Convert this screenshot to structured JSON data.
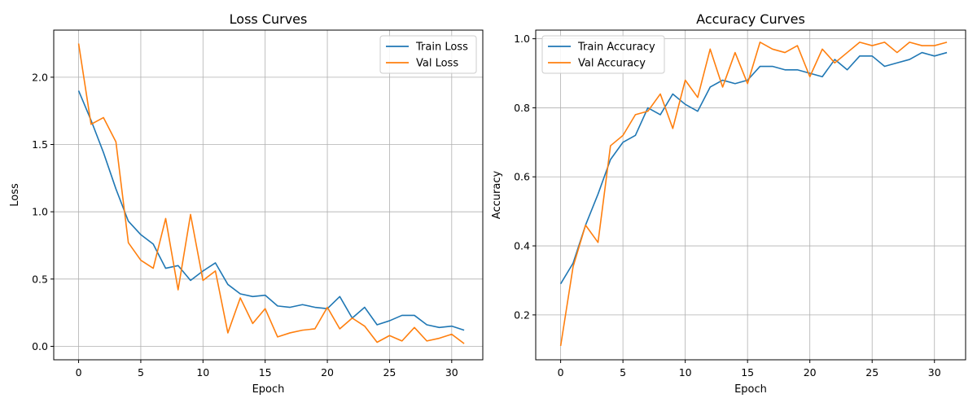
{
  "chart_data": [
    {
      "type": "line",
      "title": "Loss Curves",
      "xlabel": "Epoch",
      "ylabel": "Loss",
      "xlim": [
        -2,
        32.5
      ],
      "ylim": [
        -0.1,
        2.35
      ],
      "xticks": [
        0,
        5,
        10,
        15,
        20,
        25,
        30
      ],
      "yticks": [
        0.0,
        0.5,
        1.0,
        1.5,
        2.0
      ],
      "ytick_format": 1,
      "grid": true,
      "legend_position": "top-right",
      "x": [
        0,
        1,
        2,
        3,
        4,
        5,
        6,
        7,
        8,
        9,
        10,
        11,
        12,
        13,
        14,
        15,
        16,
        17,
        18,
        19,
        20,
        21,
        22,
        23,
        24,
        25,
        26,
        27,
        28,
        29,
        30,
        31
      ],
      "series": [
        {
          "name": "Train Loss",
          "color": "#1f77b4",
          "values": [
            1.9,
            1.68,
            1.44,
            1.17,
            0.93,
            0.83,
            0.76,
            0.58,
            0.6,
            0.49,
            0.56,
            0.62,
            0.46,
            0.39,
            0.37,
            0.38,
            0.3,
            0.29,
            0.31,
            0.29,
            0.28,
            0.37,
            0.21,
            0.29,
            0.16,
            0.19,
            0.23,
            0.23,
            0.16,
            0.14,
            0.15,
            0.12
          ]
        },
        {
          "name": "Val Loss",
          "color": "#ff7f0e",
          "values": [
            2.25,
            1.65,
            1.7,
            1.52,
            0.77,
            0.64,
            0.58,
            0.95,
            0.42,
            0.98,
            0.49,
            0.56,
            0.1,
            0.36,
            0.17,
            0.28,
            0.07,
            0.1,
            0.12,
            0.13,
            0.29,
            0.13,
            0.21,
            0.15,
            0.03,
            0.08,
            0.04,
            0.14,
            0.04,
            0.06,
            0.09,
            0.02
          ]
        }
      ]
    },
    {
      "type": "line",
      "title": "Accuracy Curves",
      "xlabel": "Epoch",
      "ylabel": "Accuracy",
      "xlim": [
        -2,
        32.5
      ],
      "ylim": [
        0.07,
        1.025
      ],
      "xticks": [
        0,
        5,
        10,
        15,
        20,
        25,
        30
      ],
      "yticks": [
        0.2,
        0.4,
        0.6,
        0.8,
        1.0
      ],
      "ytick_format": 1,
      "grid": true,
      "legend_position": "top-left",
      "x": [
        0,
        1,
        2,
        3,
        4,
        5,
        6,
        7,
        8,
        9,
        10,
        11,
        12,
        13,
        14,
        15,
        16,
        17,
        18,
        19,
        20,
        21,
        22,
        23,
        24,
        25,
        26,
        27,
        28,
        29,
        30,
        31
      ],
      "series": [
        {
          "name": "Train Accuracy",
          "color": "#1f77b4",
          "values": [
            0.29,
            0.35,
            0.46,
            0.55,
            0.65,
            0.7,
            0.72,
            0.8,
            0.78,
            0.84,
            0.81,
            0.79,
            0.86,
            0.88,
            0.87,
            0.88,
            0.92,
            0.92,
            0.91,
            0.91,
            0.9,
            0.89,
            0.94,
            0.91,
            0.95,
            0.95,
            0.92,
            0.93,
            0.94,
            0.96,
            0.95,
            0.96
          ]
        },
        {
          "name": "Val Accuracy",
          "color": "#ff7f0e",
          "values": [
            0.11,
            0.34,
            0.46,
            0.41,
            0.69,
            0.72,
            0.78,
            0.79,
            0.84,
            0.74,
            0.88,
            0.83,
            0.97,
            0.86,
            0.96,
            0.87,
            0.99,
            0.97,
            0.96,
            0.98,
            0.89,
            0.97,
            0.93,
            0.96,
            0.99,
            0.98,
            0.99,
            0.96,
            0.99,
            0.98,
            0.98,
            0.99
          ]
        }
      ]
    }
  ]
}
